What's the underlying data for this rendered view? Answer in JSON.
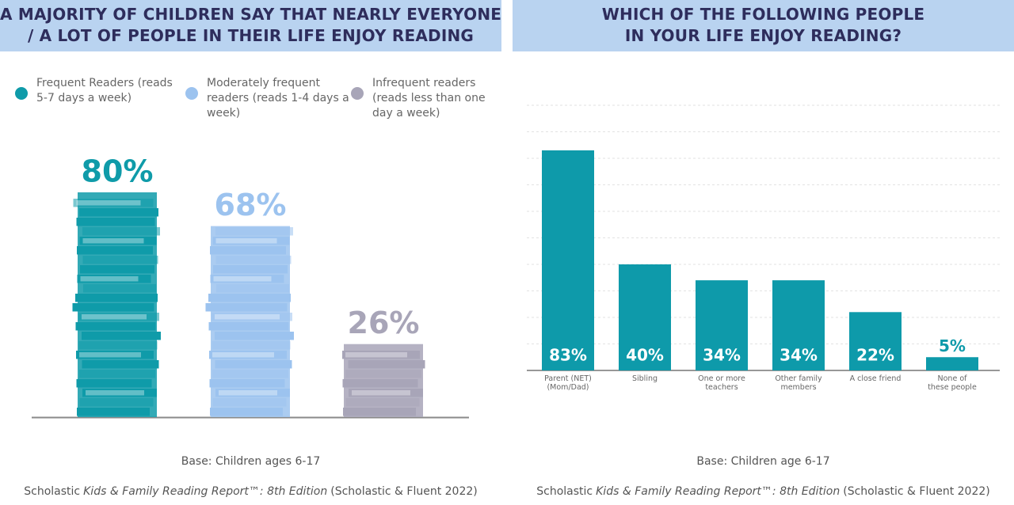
{
  "chart_data": [
    {
      "type": "pictograph",
      "title": [
        "A MAJORITY  OF CHILDREN SAY THAT NEARLY EVERYONE",
        "/ A LOT OF PEOPLE IN THEIR LIFE ENJOY READING"
      ],
      "series": [
        {
          "name": "Frequent Readers (reads 5-7 days a week)",
          "color": "#0f9ba9",
          "values": [
            80
          ],
          "value_labels": [
            "80%"
          ]
        },
        {
          "name": "Moderately frequent readers (reads 1-4 days a week)",
          "color": "#9cc3ef",
          "values": [
            68
          ],
          "value_labels": [
            "68%"
          ]
        },
        {
          "name": "Infrequent readers (reads less than one day a week)",
          "color": "#a8a5b8",
          "values": [
            26
          ],
          "value_labels": [
            "26%"
          ]
        }
      ],
      "ylim": [
        0,
        100
      ],
      "note": "Base: Children ages 6-17",
      "source": {
        "prefix": "Scholastic",
        "italic": "Kids & Family Reading Report™: 8th Edition",
        "suffix": "(Scholastic & Fluent 2022)"
      }
    },
    {
      "type": "bar",
      "title": [
        "WHICH OF THE FOLLOWING PEOPLE",
        "IN YOUR LIFE ENJOY READING?"
      ],
      "categories": [
        "Parent (NET) (Mom/Dad)",
        "Sibling",
        "One or more teachers",
        "Other family members",
        "A close friend",
        "None of these people"
      ],
      "values": [
        83,
        40,
        34,
        34,
        22,
        5
      ],
      "value_labels": [
        "83%",
        "40%",
        "34%",
        "34%",
        "22%",
        "5%"
      ],
      "color": "#0e9aaa",
      "ylim": [
        0,
        100
      ],
      "yticks": [
        0,
        10,
        20,
        30,
        40,
        50,
        60,
        70,
        80,
        90,
        100
      ],
      "grid": true,
      "note": "Base: Children age 6-17",
      "source": {
        "prefix": "Scholastic",
        "italic": "Kids & Family Reading Report™: 8th Edition",
        "suffix": "(Scholastic & Fluent 2022)"
      }
    }
  ]
}
